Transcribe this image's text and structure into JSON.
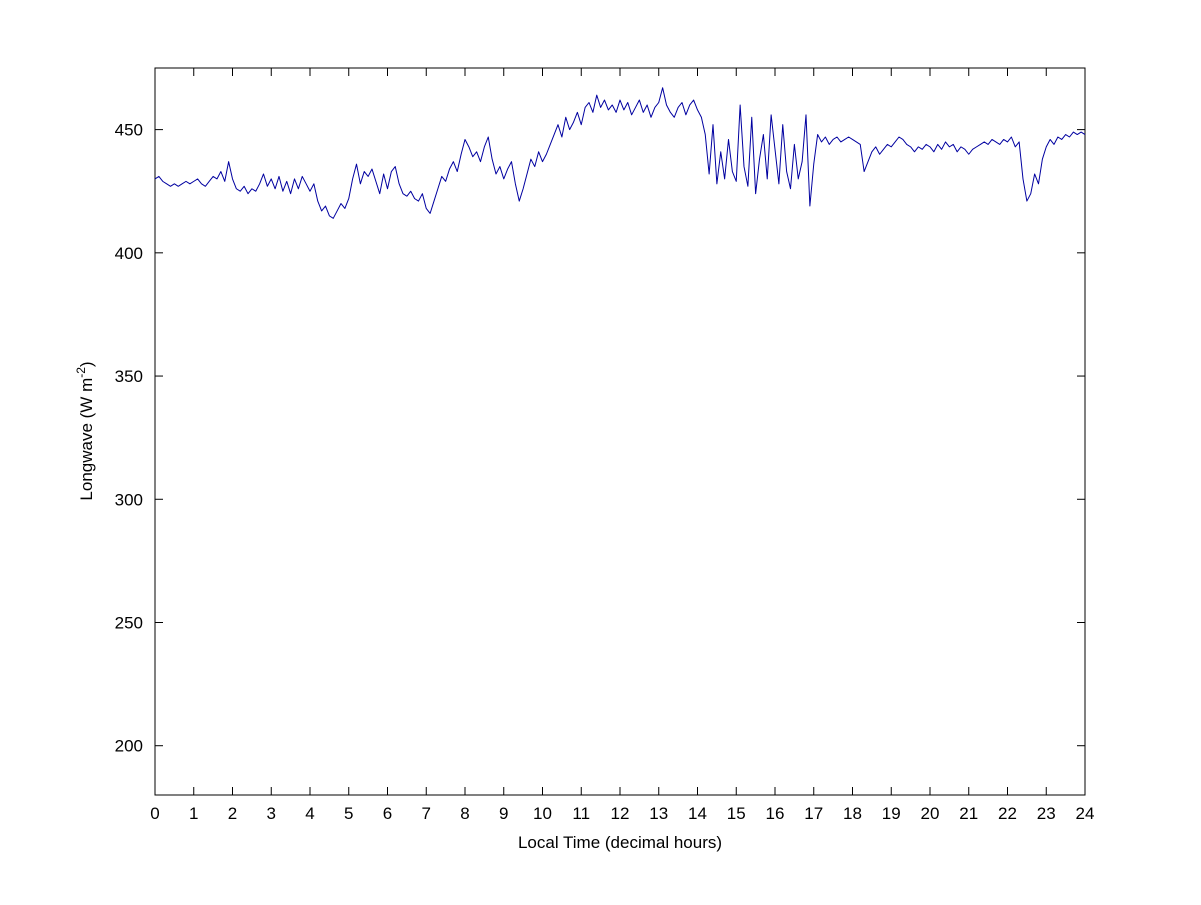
{
  "figure": {
    "background": "#ffffff",
    "axes_color": "#000000"
  },
  "chart_data": {
    "type": "line",
    "title": "",
    "xlabel": "Local Time (decimal hours)",
    "ylabel": "Longwave (W m^-2)",
    "ylabel_parts": {
      "main": "Longwave (W m",
      "sup": "-2",
      "end": ")"
    },
    "xlim": [
      0,
      24
    ],
    "ylim": [
      180,
      475
    ],
    "xticks": [
      0,
      1,
      2,
      3,
      4,
      5,
      6,
      7,
      8,
      9,
      10,
      11,
      12,
      13,
      14,
      15,
      16,
      17,
      18,
      19,
      20,
      21,
      22,
      23,
      24
    ],
    "yticks": [
      200,
      250,
      300,
      350,
      400,
      450
    ],
    "grid": false,
    "legend": null,
    "line_color": "#0000A0",
    "line_width": 1,
    "series": [
      {
        "name": "longwave",
        "x_start": 0,
        "x_step": 0.1,
        "values": [
          430,
          431,
          429,
          428,
          427,
          428,
          427,
          428,
          429,
          428,
          429,
          430,
          428,
          427,
          429,
          431,
          430,
          433,
          429,
          437,
          430,
          426,
          425,
          427,
          424,
          426,
          425,
          428,
          432,
          427,
          430,
          426,
          431,
          425,
          429,
          424,
          430,
          426,
          431,
          428,
          425,
          428,
          421,
          417,
          419,
          415,
          414,
          417,
          420,
          418,
          422,
          430,
          436,
          428,
          433,
          431,
          434,
          429,
          424,
          432,
          426,
          433,
          435,
          428,
          424,
          423,
          425,
          422,
          421,
          424,
          418,
          416,
          421,
          426,
          431,
          429,
          434,
          437,
          433,
          440,
          446,
          443,
          439,
          441,
          437,
          443,
          447,
          438,
          432,
          435,
          430,
          434,
          437,
          428,
          421,
          426,
          432,
          438,
          435,
          441,
          437,
          440,
          444,
          448,
          452,
          447,
          455,
          450,
          453,
          457,
          452,
          459,
          461,
          457,
          464,
          459,
          462,
          458,
          460,
          457,
          462,
          458,
          461,
          456,
          459,
          462,
          457,
          460,
          455,
          459,
          461,
          467,
          460,
          457,
          455,
          459,
          461,
          456,
          460,
          462,
          458,
          455,
          448,
          432,
          452,
          428,
          441,
          430,
          446,
          433,
          429,
          460,
          435,
          427,
          455,
          424,
          438,
          448,
          430,
          456,
          442,
          428,
          452,
          433,
          426,
          444,
          430,
          437,
          456,
          419,
          436,
          448,
          445,
          447,
          444,
          446,
          447,
          445,
          446,
          447,
          446,
          445,
          444,
          433,
          437,
          441,
          443,
          440,
          442,
          444,
          443,
          445,
          447,
          446,
          444,
          443,
          441,
          443,
          442,
          444,
          443,
          441,
          444,
          442,
          445,
          443,
          444,
          441,
          443,
          442,
          440,
          442,
          443,
          444,
          445,
          444,
          446,
          445,
          444,
          446,
          445,
          447,
          443,
          445,
          430,
          421,
          424,
          432,
          428,
          438,
          443,
          446,
          444,
          447,
          446,
          448,
          447,
          449,
          448,
          449,
          448
        ]
      }
    ]
  }
}
